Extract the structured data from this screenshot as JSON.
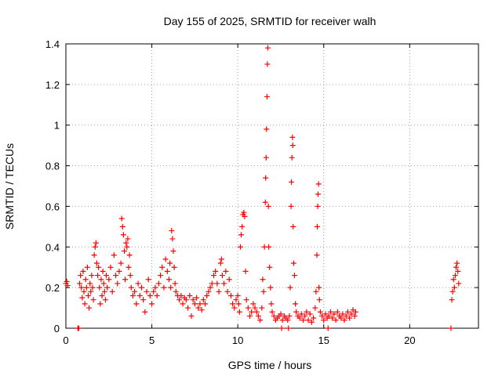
{
  "chart_data": {
    "type": "scatter",
    "title": "Day 155 of 2025, SRMTID for receiver walh",
    "xlabel": "GPS time / hours",
    "ylabel": "SRMTID / TECUs",
    "xlim": [
      0,
      24
    ],
    "ylim": [
      0,
      1.4
    ],
    "x_ticks": [
      0,
      5,
      10,
      15,
      20
    ],
    "x_tick_labels": [
      "0",
      "5",
      "10",
      "15",
      "20"
    ],
    "y_ticks": [
      0,
      0.2,
      0.4,
      0.6,
      0.8,
      1.0,
      1.2,
      1.4
    ],
    "y_tick_labels": [
      "0",
      "0.2",
      "0.4",
      "0.6",
      "0.8",
      "1",
      "1.2",
      "1.4"
    ],
    "grid": true,
    "marker": "+",
    "series_color": "#ff0000",
    "series": [
      {
        "name": "SRMTID",
        "points": [
          [
            0.0,
            0.22
          ],
          [
            0.05,
            0.23
          ],
          [
            0.1,
            0.21
          ],
          [
            0.7,
            0.0
          ],
          [
            0.75,
            0.0
          ],
          [
            0.8,
            0.22
          ],
          [
            0.85,
            0.26
          ],
          [
            0.9,
            0.2
          ],
          [
            0.95,
            0.15
          ],
          [
            1.0,
            0.28
          ],
          [
            1.05,
            0.18
          ],
          [
            1.1,
            0.12
          ],
          [
            1.15,
            0.24
          ],
          [
            1.2,
            0.2
          ],
          [
            1.25,
            0.3
          ],
          [
            1.3,
            0.16
          ],
          [
            1.35,
            0.1
          ],
          [
            1.4,
            0.22
          ],
          [
            1.45,
            0.18
          ],
          [
            1.5,
            0.26
          ],
          [
            1.55,
            0.2
          ],
          [
            1.6,
            0.14
          ],
          [
            1.65,
            0.36
          ],
          [
            1.7,
            0.4
          ],
          [
            1.75,
            0.42
          ],
          [
            1.8,
            0.32
          ],
          [
            1.85,
            0.26
          ],
          [
            1.9,
            0.3
          ],
          [
            1.95,
            0.2
          ],
          [
            2.0,
            0.12
          ],
          [
            2.05,
            0.24
          ],
          [
            2.1,
            0.16
          ],
          [
            2.15,
            0.28
          ],
          [
            2.2,
            0.22
          ],
          [
            2.25,
            0.18
          ],
          [
            2.3,
            0.14
          ],
          [
            2.35,
            0.26
          ],
          [
            2.4,
            0.2
          ],
          [
            2.5,
            0.24
          ],
          [
            2.6,
            0.3
          ],
          [
            2.7,
            0.18
          ],
          [
            2.8,
            0.36
          ],
          [
            2.9,
            0.26
          ],
          [
            3.0,
            0.22
          ],
          [
            3.1,
            0.28
          ],
          [
            3.2,
            0.32
          ],
          [
            3.25,
            0.54
          ],
          [
            3.3,
            0.5
          ],
          [
            3.35,
            0.46
          ],
          [
            3.4,
            0.38
          ],
          [
            3.45,
            0.24
          ],
          [
            3.5,
            0.42
          ],
          [
            3.55,
            0.4
          ],
          [
            3.6,
            0.44
          ],
          [
            3.65,
            0.3
          ],
          [
            3.7,
            0.36
          ],
          [
            3.75,
            0.26
          ],
          [
            3.8,
            0.2
          ],
          [
            3.9,
            0.16
          ],
          [
            4.0,
            0.18
          ],
          [
            4.1,
            0.12
          ],
          [
            4.2,
            0.22
          ],
          [
            4.3,
            0.16
          ],
          [
            4.4,
            0.2
          ],
          [
            4.5,
            0.14
          ],
          [
            4.6,
            0.08
          ],
          [
            4.7,
            0.18
          ],
          [
            4.8,
            0.24
          ],
          [
            4.9,
            0.16
          ],
          [
            5.0,
            0.12
          ],
          [
            5.1,
            0.18
          ],
          [
            5.2,
            0.2
          ],
          [
            5.3,
            0.16
          ],
          [
            5.4,
            0.22
          ],
          [
            5.5,
            0.26
          ],
          [
            5.6,
            0.3
          ],
          [
            5.7,
            0.2
          ],
          [
            5.8,
            0.34
          ],
          [
            5.9,
            0.28
          ],
          [
            6.0,
            0.24
          ],
          [
            6.05,
            0.32
          ],
          [
            6.1,
            0.2
          ],
          [
            6.15,
            0.48
          ],
          [
            6.2,
            0.44
          ],
          [
            6.25,
            0.38
          ],
          [
            6.3,
            0.3
          ],
          [
            6.35,
            0.22
          ],
          [
            6.4,
            0.18
          ],
          [
            6.5,
            0.16
          ],
          [
            6.6,
            0.14
          ],
          [
            6.7,
            0.16
          ],
          [
            6.8,
            0.12
          ],
          [
            6.9,
            0.15
          ],
          [
            7.0,
            0.14
          ],
          [
            7.1,
            0.1
          ],
          [
            7.2,
            0.16
          ],
          [
            7.3,
            0.06
          ],
          [
            7.4,
            0.14
          ],
          [
            7.5,
            0.12
          ],
          [
            7.6,
            0.15
          ],
          [
            7.7,
            0.1
          ],
          [
            7.8,
            0.12
          ],
          [
            7.9,
            0.09
          ],
          [
            8.0,
            0.14
          ],
          [
            8.1,
            0.12
          ],
          [
            8.2,
            0.16
          ],
          [
            8.3,
            0.18
          ],
          [
            8.4,
            0.2
          ],
          [
            8.5,
            0.22
          ],
          [
            8.6,
            0.26
          ],
          [
            8.7,
            0.28
          ],
          [
            8.8,
            0.22
          ],
          [
            8.9,
            0.18
          ],
          [
            9.0,
            0.32
          ],
          [
            9.05,
            0.34
          ],
          [
            9.1,
            0.26
          ],
          [
            9.2,
            0.22
          ],
          [
            9.3,
            0.28
          ],
          [
            9.4,
            0.18
          ],
          [
            9.5,
            0.24
          ],
          [
            9.6,
            0.16
          ],
          [
            9.7,
            0.12
          ],
          [
            9.8,
            0.1
          ],
          [
            9.9,
            0.14
          ],
          [
            10.0,
            0.16
          ],
          [
            10.05,
            0.12
          ],
          [
            10.1,
            0.08
          ],
          [
            10.15,
            0.4
          ],
          [
            10.2,
            0.46
          ],
          [
            10.25,
            0.5
          ],
          [
            10.3,
            0.56
          ],
          [
            10.35,
            0.57
          ],
          [
            10.4,
            0.55
          ],
          [
            10.45,
            0.28
          ],
          [
            10.5,
            0.14
          ],
          [
            10.6,
            0.1
          ],
          [
            10.7,
            0.06
          ],
          [
            10.8,
            0.08
          ],
          [
            10.9,
            0.12
          ],
          [
            11.0,
            0.1
          ],
          [
            11.1,
            0.08
          ],
          [
            11.2,
            0.06
          ],
          [
            11.3,
            0.04
          ],
          [
            11.4,
            0.1
          ],
          [
            11.45,
            0.24
          ],
          [
            11.5,
            0.18
          ],
          [
            11.55,
            0.4
          ],
          [
            11.6,
            0.62
          ],
          [
            11.62,
            0.74
          ],
          [
            11.65,
            0.84
          ],
          [
            11.67,
            0.98
          ],
          [
            11.7,
            1.14
          ],
          [
            11.72,
            1.3
          ],
          [
            11.75,
            1.38
          ],
          [
            11.78,
            0.6
          ],
          [
            11.8,
            0.4
          ],
          [
            11.85,
            0.3
          ],
          [
            11.9,
            0.2
          ],
          [
            11.95,
            0.12
          ],
          [
            12.0,
            0.08
          ],
          [
            12.1,
            0.06
          ],
          [
            12.2,
            0.04
          ],
          [
            12.3,
            0.05
          ],
          [
            12.4,
            0.06
          ],
          [
            12.5,
            0.07
          ],
          [
            12.55,
            0.0
          ],
          [
            12.6,
            0.04
          ],
          [
            12.7,
            0.06
          ],
          [
            12.8,
            0.05
          ],
          [
            12.9,
            0.04
          ],
          [
            12.95,
            0.0
          ],
          [
            13.0,
            0.06
          ],
          [
            13.05,
            0.2
          ],
          [
            13.1,
            0.6
          ],
          [
            13.12,
            0.72
          ],
          [
            13.15,
            0.84
          ],
          [
            13.18,
            0.94
          ],
          [
            13.2,
            0.9
          ],
          [
            13.22,
            0.5
          ],
          [
            13.25,
            0.32
          ],
          [
            13.3,
            0.26
          ],
          [
            13.35,
            0.12
          ],
          [
            13.4,
            0.08
          ],
          [
            13.5,
            0.06
          ],
          [
            13.6,
            0.05
          ],
          [
            13.7,
            0.07
          ],
          [
            13.8,
            0.04
          ],
          [
            13.9,
            0.06
          ],
          [
            14.0,
            0.08
          ],
          [
            14.1,
            0.04
          ],
          [
            14.2,
            0.07
          ],
          [
            14.3,
            0.03
          ],
          [
            14.4,
            0.05
          ],
          [
            14.5,
            0.1
          ],
          [
            14.55,
            0.18
          ],
          [
            14.6,
            0.36
          ],
          [
            14.62,
            0.5
          ],
          [
            14.65,
            0.6
          ],
          [
            14.67,
            0.66
          ],
          [
            14.7,
            0.71
          ],
          [
            14.72,
            0.2
          ],
          [
            14.75,
            0.14
          ],
          [
            14.8,
            0.08
          ],
          [
            14.9,
            0.06
          ],
          [
            15.0,
            0.04
          ],
          [
            15.1,
            0.07
          ],
          [
            15.2,
            0.05
          ],
          [
            15.25,
            0.0
          ],
          [
            15.3,
            0.06
          ],
          [
            15.4,
            0.08
          ],
          [
            15.5,
            0.05
          ],
          [
            15.6,
            0.07
          ],
          [
            15.7,
            0.04
          ],
          [
            15.8,
            0.08
          ],
          [
            15.9,
            0.06
          ],
          [
            16.0,
            0.05
          ],
          [
            16.1,
            0.07
          ],
          [
            16.2,
            0.04
          ],
          [
            16.3,
            0.06
          ],
          [
            16.4,
            0.08
          ],
          [
            16.5,
            0.05
          ],
          [
            16.6,
            0.07
          ],
          [
            16.7,
            0.09
          ],
          [
            16.8,
            0.06
          ],
          [
            16.85,
            0.08
          ],
          [
            22.4,
            0.0
          ],
          [
            22.45,
            0.14
          ],
          [
            22.5,
            0.18
          ],
          [
            22.55,
            0.24
          ],
          [
            22.6,
            0.2
          ],
          [
            22.65,
            0.26
          ],
          [
            22.7,
            0.3
          ],
          [
            22.75,
            0.32
          ],
          [
            22.8,
            0.28
          ],
          [
            22.85,
            0.22
          ]
        ]
      }
    ]
  }
}
